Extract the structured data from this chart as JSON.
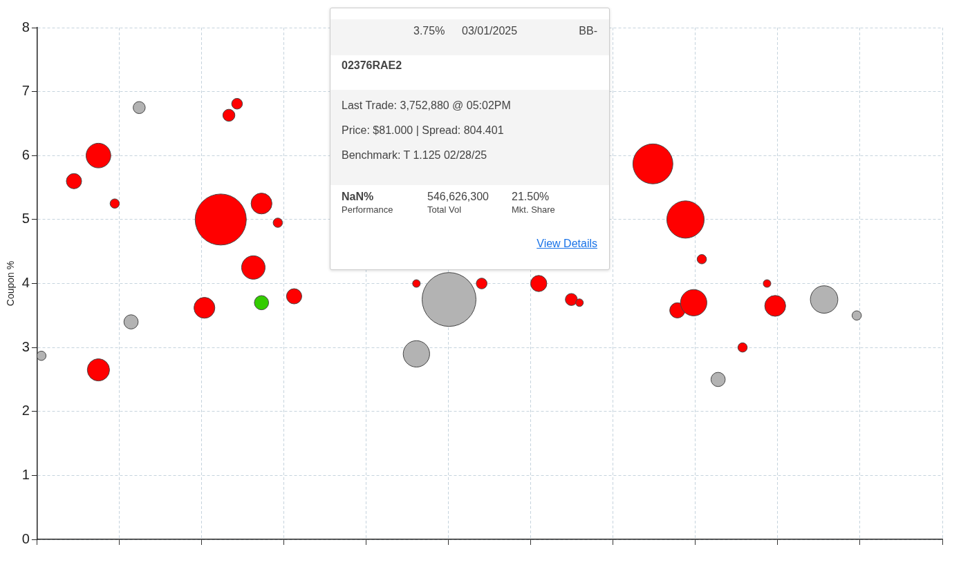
{
  "chart_data": {
    "type": "bubble",
    "ylabel": "Coupon %",
    "categories": [
      null,
      null,
      null,
      null,
      null,
      null,
      null,
      null,
      null,
      null,
      null,
      null,
      null,
      null,
      null,
      null,
      null,
      null,
      null,
      null,
      null,
      null,
      null,
      null,
      null,
      null,
      null,
      null,
      null,
      null,
      null,
      null,
      null,
      null,
      null,
      null,
      null,
      null,
      null,
      null,
      null,
      null,
      null,
      null,
      null,
      null,
      null,
      null,
      null,
      null,
      null,
      null,
      null,
      null,
      null,
      null,
      null,
      null,
      null,
      null,
      null,
      null,
      null,
      null,
      null,
      null,
      null,
      null,
      null,
      null,
      null,
      null,
      null,
      null,
      null,
      null,
      null,
      null,
      null,
      null,
      null,
      null,
      null,
      null,
      null,
      null,
      null,
      null,
      null,
      null,
      null,
      null,
      null,
      null,
      null,
      null,
      null,
      null,
      null,
      null,
      null,
      null,
      null,
      null,
      null,
      null,
      null,
      null,
      null,
      null,
      null
    ],
    "ylim": [
      0,
      8
    ],
    "yticks": [
      0,
      1,
      2,
      3,
      4,
      5,
      6,
      7,
      8
    ],
    "tick_labels": "y",
    "grid": true,
    "series": [
      {
        "color": "#ff0000",
        "values": [
          null,
          null,
          null,
          null,
          5.6,
          null,
          null,
          6.0,
          null,
          5.25,
          null,
          null,
          null,
          null,
          null,
          null,
          null,
          null,
          null,
          null,
          3.62,
          null,
          5.0,
          6.63,
          6.81,
          null,
          4.25,
          5.25,
          null,
          4.95,
          null,
          3.8,
          null,
          null,
          null,
          null,
          null,
          null,
          null,
          null,
          null,
          null,
          null,
          null,
          null,
          null,
          4.0,
          null,
          null,
          null,
          null,
          null,
          null,
          null,
          4.0,
          null,
          null,
          null,
          null,
          null,
          null,
          4.0,
          null,
          null,
          null,
          3.75,
          3.7,
          null,
          null,
          null,
          null,
          null,
          null,
          null,
          null,
          5.87,
          null,
          null,
          3.58,
          5.0,
          3.7,
          4.38,
          null,
          null,
          null,
          null,
          3.0,
          null,
          null,
          4.0,
          3.65,
          null,
          null,
          null,
          null,
          null,
          null,
          null,
          null,
          null,
          null,
          null,
          null,
          null,
          null,
          null,
          null,
          null,
          null,
          null,
          null
        ],
        "sizes": [
          null,
          null,
          null,
          null,
          0.08,
          null,
          null,
          0.21,
          null,
          0.03,
          null,
          null,
          null,
          null,
          null,
          null,
          null,
          null,
          null,
          null,
          0.15,
          null,
          0.9,
          0.05,
          0.04,
          null,
          0.19,
          0.15,
          null,
          0.03,
          null,
          0.08,
          null,
          null,
          null,
          null,
          null,
          null,
          null,
          null,
          null,
          null,
          null,
          null,
          null,
          null,
          0.02,
          null,
          null,
          null,
          null,
          null,
          null,
          null,
          0.04,
          null,
          null,
          null,
          null,
          null,
          null,
          0.09,
          null,
          null,
          null,
          0.05,
          0.02,
          null,
          null,
          null,
          null,
          null,
          null,
          null,
          null,
          0.55,
          null,
          null,
          0.08,
          0.48,
          0.24,
          0.03,
          null,
          null,
          null,
          null,
          0.03,
          null,
          null,
          0.02,
          0.15,
          null,
          null,
          null,
          null,
          null,
          null,
          null,
          null,
          null,
          null,
          null,
          null,
          null,
          null,
          null,
          null,
          null,
          null,
          null,
          null
        ]
      },
      {
        "color": "#ff0000",
        "values": [
          null,
          null,
          null,
          null,
          null,
          null,
          null,
          2.65,
          null,
          null,
          null,
          null,
          null,
          null,
          null,
          null,
          null,
          null,
          null,
          null,
          null,
          null,
          null,
          null,
          null,
          null,
          null,
          null,
          null,
          null,
          null,
          null,
          null,
          null,
          null,
          null,
          null,
          null,
          null,
          null,
          null,
          null,
          null,
          null,
          null,
          null,
          null,
          null,
          null,
          null,
          null,
          null,
          null,
          null,
          null,
          null,
          null,
          null,
          null,
          null,
          null,
          null,
          null,
          null,
          null,
          null,
          null,
          null,
          null,
          null,
          null,
          null,
          null,
          null,
          null,
          null,
          null,
          null,
          null,
          null,
          null,
          null,
          null,
          null,
          null,
          null,
          null,
          null,
          null,
          null,
          null,
          null,
          null,
          null,
          null,
          null,
          null,
          null,
          null,
          null,
          null,
          null,
          null,
          null,
          null,
          null,
          null,
          null,
          null,
          null,
          null
        ],
        "sizes": [
          null,
          null,
          null,
          null,
          null,
          null,
          null,
          0.17,
          null,
          null,
          null,
          null,
          null,
          null,
          null,
          null,
          null,
          null,
          null,
          null,
          null,
          null,
          null,
          null,
          null,
          null,
          null,
          null,
          null,
          null,
          null,
          null,
          null,
          null,
          null,
          null,
          null,
          null,
          null,
          null,
          null,
          null,
          null,
          null,
          null,
          null,
          null,
          null,
          null,
          null,
          null,
          null,
          null,
          null,
          null,
          null,
          null,
          null,
          null,
          null,
          null,
          null,
          null,
          null,
          null,
          null,
          null,
          null,
          null,
          null,
          null,
          null,
          null,
          null,
          null,
          null,
          null,
          null,
          null,
          null,
          null,
          null,
          null,
          null,
          null,
          null,
          null,
          null,
          null,
          null,
          null,
          null,
          null,
          null,
          null,
          null,
          null,
          null,
          null,
          null,
          null,
          null,
          null,
          null,
          null,
          null,
          null,
          null,
          null,
          null,
          null
        ]
      },
      {
        "color": "#b3b3b3",
        "values": [
          2.87,
          null,
          null,
          null,
          null,
          null,
          null,
          null,
          null,
          null,
          null,
          3.4,
          6.75,
          null,
          null,
          null,
          null,
          null,
          null,
          null,
          null,
          null,
          null,
          null,
          null,
          null,
          null,
          null,
          null,
          null,
          null,
          null,
          null,
          null,
          null,
          null,
          null,
          null,
          null,
          null,
          null,
          null,
          null,
          null,
          null,
          null,
          2.9,
          null,
          null,
          null,
          3.75,
          null,
          null,
          null,
          null,
          null,
          null,
          null,
          null,
          null,
          null,
          null,
          null,
          null,
          null,
          null,
          null,
          null,
          null,
          null,
          null,
          null,
          null,
          null,
          null,
          null,
          null,
          null,
          null,
          null,
          null,
          null,
          null,
          2.5,
          null,
          null,
          null,
          null,
          null,
          null,
          null,
          null,
          null,
          null,
          null,
          null,
          3.75,
          null,
          null,
          null,
          3.5,
          null,
          null,
          null,
          null,
          null,
          null,
          null,
          null,
          null,
          null
        ],
        "sizes": [
          0.03,
          null,
          null,
          null,
          null,
          null,
          null,
          null,
          null,
          null,
          null,
          0.07,
          0.05,
          null,
          null,
          null,
          null,
          null,
          null,
          null,
          null,
          null,
          null,
          null,
          null,
          null,
          null,
          null,
          null,
          null,
          null,
          null,
          null,
          null,
          null,
          null,
          null,
          null,
          null,
          null,
          null,
          null,
          null,
          null,
          null,
          null,
          0.24,
          null,
          null,
          null,
          1,
          null,
          null,
          null,
          null,
          null,
          null,
          null,
          null,
          null,
          null,
          null,
          null,
          null,
          null,
          null,
          null,
          null,
          null,
          null,
          null,
          null,
          null,
          null,
          null,
          null,
          null,
          null,
          null,
          null,
          null,
          null,
          null,
          0.07,
          null,
          null,
          null,
          null,
          null,
          null,
          null,
          null,
          null,
          null,
          null,
          null,
          0.26,
          null,
          null,
          null,
          0.03,
          null,
          null,
          null,
          null,
          null,
          null,
          null,
          null,
          null,
          null
        ]
      },
      {
        "color": "#33cc00",
        "values": [
          null,
          null,
          null,
          null,
          null,
          null,
          null,
          null,
          null,
          null,
          null,
          null,
          null,
          null,
          null,
          null,
          null,
          null,
          null,
          null,
          null,
          null,
          null,
          null,
          null,
          null,
          null,
          3.7,
          null,
          null,
          null,
          null,
          null,
          null,
          null,
          null,
          null,
          null,
          null,
          null,
          null,
          null,
          null,
          null,
          null,
          null,
          null,
          null,
          null,
          null,
          null,
          null,
          null,
          null,
          null,
          null,
          null,
          null,
          null,
          null,
          null,
          null,
          null,
          null,
          null,
          null,
          null,
          null,
          null,
          null,
          null,
          null,
          null,
          null,
          null,
          null,
          null,
          null,
          null,
          null,
          null,
          null,
          null,
          null,
          null,
          null,
          null,
          null,
          null,
          null,
          null,
          null,
          null,
          null,
          null,
          null,
          null,
          null,
          null,
          null,
          null,
          null,
          null,
          null,
          null,
          null,
          null,
          null,
          null,
          null,
          null
        ],
        "sizes": [
          null,
          null,
          null,
          null,
          null,
          null,
          null,
          null,
          null,
          null,
          null,
          null,
          null,
          null,
          null,
          null,
          null,
          null,
          null,
          null,
          null,
          null,
          null,
          null,
          null,
          null,
          null,
          0.07,
          null,
          null,
          null,
          null,
          null,
          null,
          null,
          null,
          null,
          null,
          null,
          null,
          null,
          null,
          null,
          null,
          null,
          null,
          null,
          null,
          null,
          null,
          null,
          null,
          null,
          null,
          null,
          null,
          null,
          null,
          null,
          null,
          null,
          null,
          null,
          null,
          null,
          null,
          null,
          null,
          null,
          null,
          null,
          null,
          null,
          null,
          null,
          null,
          null,
          null,
          null,
          null,
          null,
          null,
          null,
          null,
          null,
          null,
          null,
          null,
          null,
          null,
          null,
          null,
          null,
          null,
          null,
          null,
          null,
          null,
          null,
          null,
          null,
          null,
          null,
          null,
          null,
          null,
          null,
          null,
          null,
          null,
          null
        ]
      }
    ],
    "annotations": [
      "3.75%",
      "03/01/2025",
      "BB-",
      "02376RAE2",
      "Last Trade: 3,752,880 @ 05:02PM",
      "Price: $81.000 | Spread: 804.401",
      "Benchmark: T 1.125 02/28/25",
      "NaN%",
      "Performance",
      "546,626,300",
      "Total Vol",
      "21.50%",
      "Mkt. Share",
      "View Details"
    ]
  }
}
